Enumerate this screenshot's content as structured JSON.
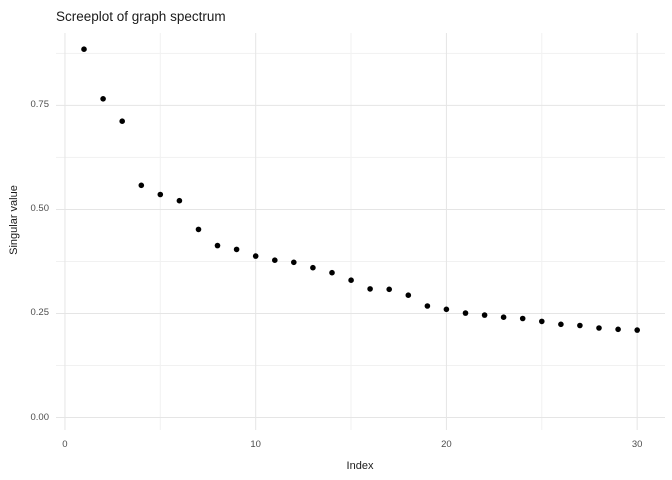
{
  "chart_data": {
    "type": "scatter",
    "title": "Screeplot of graph spectrum",
    "xlabel": "Index",
    "ylabel": "Singular value",
    "x": [
      1,
      2,
      3,
      4,
      5,
      6,
      7,
      8,
      9,
      10,
      11,
      12,
      13,
      14,
      15,
      16,
      17,
      18,
      19,
      20,
      21,
      22,
      23,
      24,
      25,
      26,
      27,
      28,
      29,
      30
    ],
    "y": [
      0.885,
      0.766,
      0.712,
      0.558,
      0.536,
      0.521,
      0.452,
      0.413,
      0.404,
      0.388,
      0.378,
      0.373,
      0.36,
      0.348,
      0.33,
      0.309,
      0.308,
      0.294,
      0.268,
      0.26,
      0.251,
      0.246,
      0.241,
      0.238,
      0.231,
      0.224,
      0.221,
      0.215,
      0.212,
      0.21
    ],
    "xlim": [
      -0.47,
      31.46
    ],
    "ylim": [
      -0.03,
      0.924
    ],
    "x_ticks": [
      0,
      10,
      20,
      30
    ],
    "x_tick_labels": [
      "0",
      "10",
      "20",
      "30"
    ],
    "x_minor_ticks": [
      5,
      15,
      25
    ],
    "y_ticks": [
      0.0,
      0.25,
      0.5,
      0.75
    ],
    "y_tick_labels": [
      "0.00",
      "0.25",
      "0.50",
      "0.75"
    ],
    "y_minor_ticks": [
      0.125,
      0.375,
      0.625,
      0.875
    ],
    "grid": true,
    "legend": "none",
    "point_radius": 2.8,
    "colors": {
      "point": "#000000",
      "grid_major": "#e5e5e5",
      "grid_minor": "#f1f1f1",
      "tick_text": "#4d4d4d",
      "title_text": "#1a1a1a",
      "background": "#ffffff"
    }
  }
}
